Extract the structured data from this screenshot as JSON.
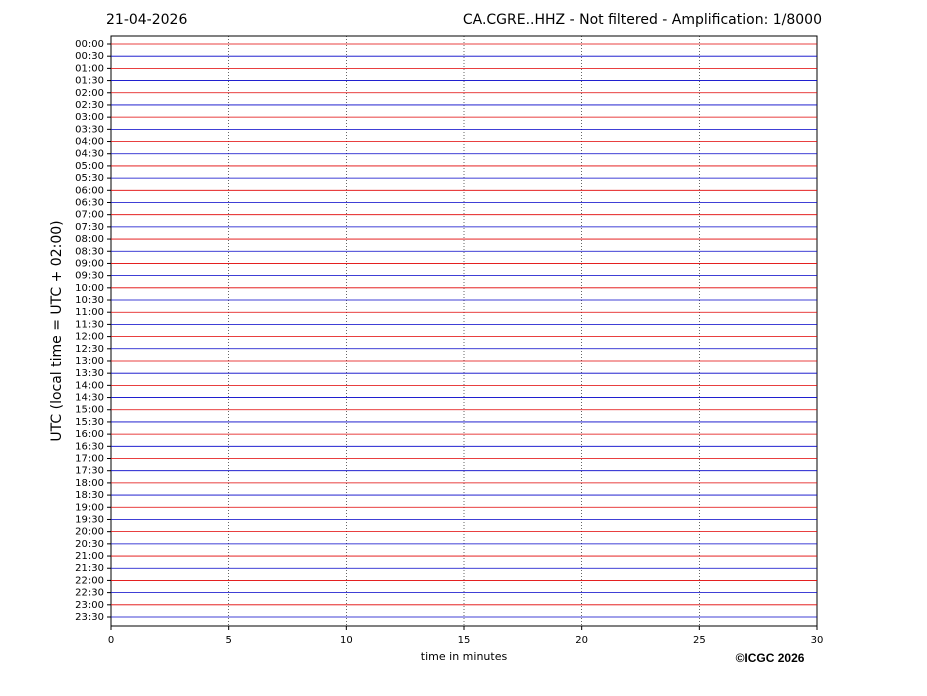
{
  "chart_data": {
    "type": "helicorder",
    "date": "21-04-2026",
    "title": "CA.CGRE..HHZ - Not filtered - Amplification: 1/8000",
    "ylabel": "UTC (local time = UTC + 02:00)",
    "xlabel": "time in minutes",
    "copyright": "©ICGC 2026",
    "rows": [
      "00:00",
      "00:30",
      "01:00",
      "01:30",
      "02:00",
      "02:30",
      "03:00",
      "03:30",
      "04:00",
      "04:30",
      "05:00",
      "05:30",
      "06:00",
      "06:30",
      "07:00",
      "07:30",
      "08:00",
      "08:30",
      "09:00",
      "09:30",
      "10:00",
      "10:30",
      "11:00",
      "11:30",
      "12:00",
      "12:30",
      "13:00",
      "13:30",
      "14:00",
      "14:30",
      "15:00",
      "15:30",
      "16:00",
      "16:30",
      "17:00",
      "17:30",
      "18:00",
      "18:30",
      "19:00",
      "19:30",
      "20:00",
      "20:30",
      "21:00",
      "21:30",
      "22:00",
      "22:30",
      "23:00",
      "23:30"
    ],
    "trace_colors": [
      "#e00000",
      "#0000c8"
    ],
    "xlim": [
      0,
      30
    ],
    "xticks": [
      0,
      5,
      10,
      15,
      20,
      25,
      30
    ],
    "grid": true
  }
}
